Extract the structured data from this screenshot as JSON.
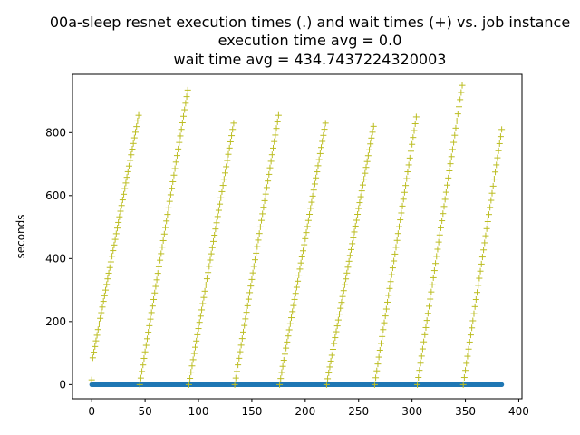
{
  "chart_data": {
    "type": "scatter",
    "title": "00a-sleep resnet execution times (.) and wait times (+) vs. job instance",
    "subtitle_lines": [
      "execution time avg = 0.0",
      "wait time avg = 434.7437224320003"
    ],
    "xlabel": "",
    "ylabel": "seconds",
    "xlim": [
      -18,
      403
    ],
    "ylim": [
      -45,
      985
    ],
    "xticks": [
      0,
      50,
      100,
      150,
      200,
      250,
      300,
      350,
      400
    ],
    "yticks": [
      0,
      200,
      400,
      600,
      800
    ],
    "grid": false,
    "series": [
      {
        "marker": "dot",
        "color": "#1f77b4",
        "x_range": [
          0,
          384
        ],
        "constant_y": 0
      },
      {
        "marker": "plus",
        "color": "#bcbd22",
        "cycles": [
          {
            "x_start": 1,
            "x_end": 44,
            "y_start": 85,
            "y_end": 855
          },
          {
            "x_start": 45,
            "x_end": 90,
            "y_start": 0,
            "y_end": 935
          },
          {
            "x_start": 91,
            "x_end": 133,
            "y_start": 0,
            "y_end": 830
          },
          {
            "x_start": 134,
            "x_end": 175,
            "y_start": 0,
            "y_end": 855
          },
          {
            "x_start": 176,
            "x_end": 219,
            "y_start": 0,
            "y_end": 830
          },
          {
            "x_start": 220,
            "x_end": 264,
            "y_start": 0,
            "y_end": 820
          },
          {
            "x_start": 265,
            "x_end": 304,
            "y_start": 0,
            "y_end": 850
          },
          {
            "x_start": 305,
            "x_end": 347,
            "y_start": 0,
            "y_end": 950
          },
          {
            "x_start": 348,
            "x_end": 384,
            "y_start": 0,
            "y_end": 810
          }
        ],
        "extra_points": [
          {
            "x": 0,
            "y": 15
          }
        ]
      }
    ]
  }
}
